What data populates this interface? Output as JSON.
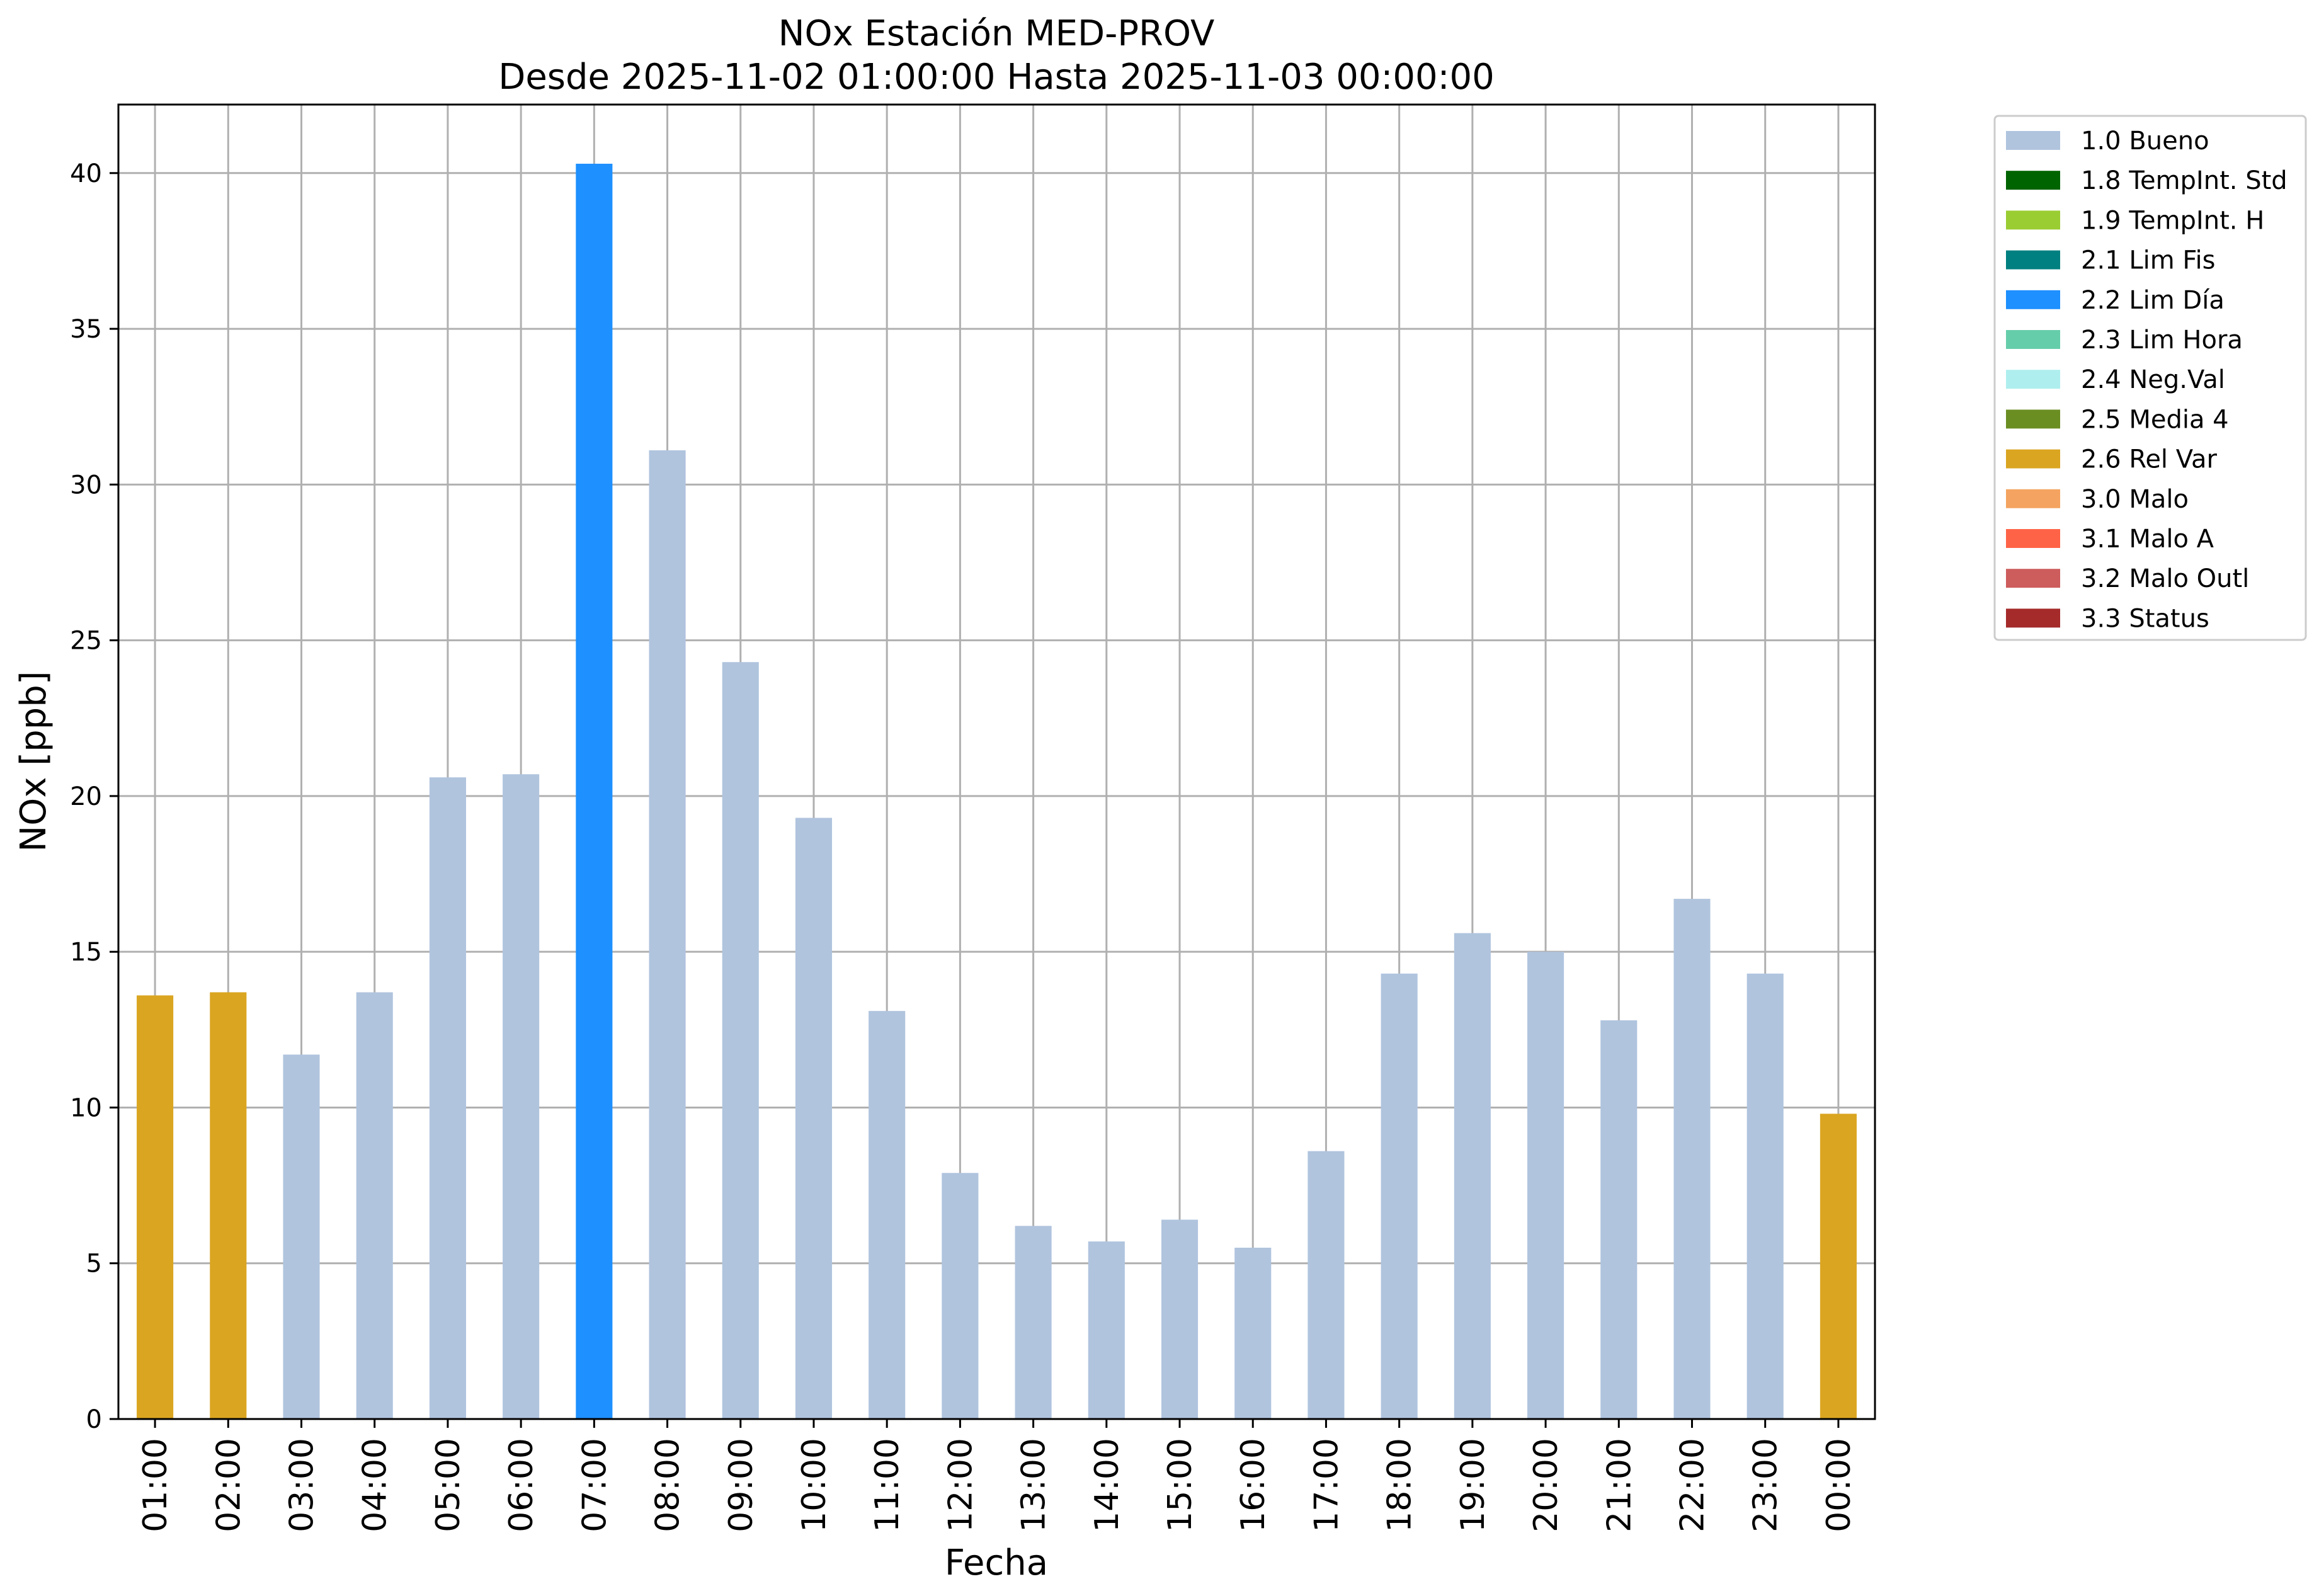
{
  "chart_data": {
    "type": "bar",
    "title": "NOx Estación MED-PROV",
    "subtitle": "Desde 2025-11-02 01:00:00 Hasta 2025-11-03 00:00:00",
    "xlabel": "Fecha",
    "ylabel": "NOx [ppb]",
    "ylim": [
      0,
      42.2
    ],
    "yticks": [
      0,
      5,
      10,
      15,
      20,
      25,
      30,
      35,
      40
    ],
    "grid": true,
    "legend_position": "outside-right-top",
    "categories": [
      "01:00",
      "02:00",
      "03:00",
      "04:00",
      "05:00",
      "06:00",
      "07:00",
      "08:00",
      "09:00",
      "10:00",
      "11:00",
      "12:00",
      "13:00",
      "14:00",
      "15:00",
      "16:00",
      "17:00",
      "18:00",
      "19:00",
      "20:00",
      "21:00",
      "22:00",
      "23:00",
      "00:00"
    ],
    "values": [
      13.6,
      13.7,
      11.7,
      13.7,
      20.6,
      20.7,
      40.3,
      31.1,
      24.3,
      19.3,
      13.1,
      7.9,
      6.2,
      5.7,
      6.4,
      5.5,
      8.6,
      14.3,
      15.6,
      15.0,
      12.8,
      16.7,
      14.3,
      9.8
    ],
    "flags": [
      "2.6 Rel Var",
      "2.6 Rel Var",
      "1.0 Bueno",
      "1.0 Bueno",
      "1.0 Bueno",
      "1.0 Bueno",
      "2.2 Lim Día",
      "1.0 Bueno",
      "1.0 Bueno",
      "1.0 Bueno",
      "1.0 Bueno",
      "1.0 Bueno",
      "1.0 Bueno",
      "1.0 Bueno",
      "1.0 Bueno",
      "1.0 Bueno",
      "1.0 Bueno",
      "1.0 Bueno",
      "1.0 Bueno",
      "1.0 Bueno",
      "1.0 Bueno",
      "1.0 Bueno",
      "1.0 Bueno",
      "2.6 Rel Var"
    ],
    "legend": [
      {
        "name": "1.0 Bueno",
        "color": "#b0c4de"
      },
      {
        "name": "1.8 TempInt. Std",
        "color": "#006400"
      },
      {
        "name": "1.9 TempInt. H",
        "color": "#9acd32"
      },
      {
        "name": "2.1 Lim Fis",
        "color": "#008080"
      },
      {
        "name": "2.2 Lim Día",
        "color": "#1e90ff"
      },
      {
        "name": "2.3 Lim Hora",
        "color": "#66cdaa"
      },
      {
        "name": "2.4 Neg.Val",
        "color": "#afeeee"
      },
      {
        "name": "2.5 Media 4",
        "color": "#6b8e23"
      },
      {
        "name": "2.6 Rel Var",
        "color": "#daa520"
      },
      {
        "name": "3.0 Malo",
        "color": "#f4a460"
      },
      {
        "name": "3.1 Malo A",
        "color": "#ff6347"
      },
      {
        "name": "3.2 Malo Outl",
        "color": "#cd5c5c"
      },
      {
        "name": "3.3 Status",
        "color": "#a52a2a"
      }
    ]
  }
}
